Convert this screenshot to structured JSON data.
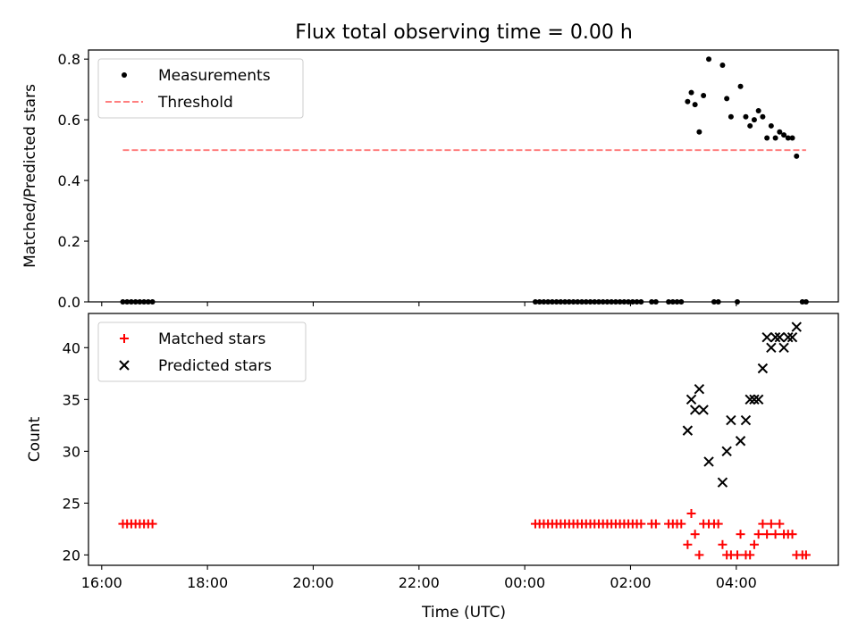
{
  "title": "Flux total observing time = 0.00 h",
  "x_axis": {
    "label": "Time (UTC)",
    "ticks": [
      "16:00",
      "18:00",
      "20:00",
      "22:00",
      "00:00",
      "02:00",
      "04:00"
    ],
    "tick_hours": [
      16,
      18,
      20,
      22,
      24,
      26,
      28
    ],
    "range_hours": [
      15.75,
      29.93
    ]
  },
  "chart_data": [
    {
      "type": "scatter",
      "name": "ratio",
      "ylabel": "Matched/Predicted stars",
      "ylim": [
        0.0,
        0.83
      ],
      "yticks": [
        "0.0",
        "0.2",
        "0.4",
        "0.6",
        "0.8"
      ],
      "ytick_values": [
        0.0,
        0.2,
        0.4,
        0.6,
        0.8
      ],
      "legend_position": "upper-left",
      "series": [
        {
          "name": "Measurements",
          "kind": "dots",
          "color": "#000000",
          "x": [
            16.4,
            16.48,
            16.56,
            16.64,
            16.72,
            16.8,
            16.88,
            16.96,
            24.2,
            24.28,
            24.36,
            24.44,
            24.52,
            24.6,
            24.68,
            24.76,
            24.84,
            24.92,
            25.0,
            25.08,
            25.16,
            25.24,
            25.32,
            25.4,
            25.48,
            25.56,
            25.64,
            25.72,
            25.8,
            25.88,
            25.96,
            26.04,
            26.12,
            26.2,
            26.4,
            26.48,
            26.72,
            26.8,
            26.88,
            26.96,
            27.08,
            27.15,
            27.22,
            27.3,
            27.38,
            27.48,
            27.58,
            27.66,
            27.74,
            27.82,
            27.9,
            28.02,
            28.08,
            28.18,
            28.26,
            28.34,
            28.42,
            28.5,
            28.58,
            28.66,
            28.74,
            28.82,
            28.9,
            28.98,
            29.06,
            29.14,
            29.25,
            29.32
          ],
          "y": [
            0,
            0,
            0,
            0,
            0,
            0,
            0,
            0,
            0,
            0,
            0,
            0,
            0,
            0,
            0,
            0,
            0,
            0,
            0,
            0,
            0,
            0,
            0,
            0,
            0,
            0,
            0,
            0,
            0,
            0,
            0,
            0,
            0,
            0,
            0,
            0,
            0,
            0,
            0,
            0,
            0.66,
            0.69,
            0.65,
            0.56,
            0.68,
            0.8,
            0,
            0,
            0.78,
            0.67,
            0.61,
            0,
            0.71,
            0.61,
            0.58,
            0.6,
            0.63,
            0.61,
            0.54,
            0.58,
            0.54,
            0.56,
            0.55,
            0.54,
            0.54,
            0.48,
            0,
            0
          ]
        },
        {
          "name": "Threshold",
          "kind": "dashed-line",
          "color": "#ff7f7f",
          "x": [
            16.4,
            29.32
          ],
          "y": [
            0.5,
            0.5
          ]
        }
      ]
    },
    {
      "type": "scatter",
      "name": "counts",
      "ylabel": "Count",
      "ylim": [
        19.0,
        43.3
      ],
      "yticks": [
        "20",
        "25",
        "30",
        "35",
        "40"
      ],
      "ytick_values": [
        20,
        25,
        30,
        35,
        40
      ],
      "legend_position": "upper-left",
      "series": [
        {
          "name": "Matched stars",
          "kind": "plus",
          "color": "#ff0000",
          "x": [
            16.4,
            16.48,
            16.56,
            16.64,
            16.72,
            16.8,
            16.88,
            16.96,
            24.2,
            24.28,
            24.36,
            24.44,
            24.52,
            24.6,
            24.68,
            24.76,
            24.84,
            24.92,
            25.0,
            25.08,
            25.16,
            25.24,
            25.32,
            25.4,
            25.48,
            25.56,
            25.64,
            25.72,
            25.8,
            25.88,
            25.96,
            26.04,
            26.12,
            26.2,
            26.4,
            26.48,
            26.72,
            26.8,
            26.88,
            26.96,
            27.08,
            27.15,
            27.22,
            27.3,
            27.38,
            27.48,
            27.58,
            27.66,
            27.74,
            27.82,
            27.9,
            28.02,
            28.08,
            28.18,
            28.26,
            28.34,
            28.42,
            28.5,
            28.58,
            28.66,
            28.74,
            28.82,
            28.9,
            28.98,
            29.06,
            29.14,
            29.25,
            29.32
          ],
          "y": [
            23,
            23,
            23,
            23,
            23,
            23,
            23,
            23,
            23,
            23,
            23,
            23,
            23,
            23,
            23,
            23,
            23,
            23,
            23,
            23,
            23,
            23,
            23,
            23,
            23,
            23,
            23,
            23,
            23,
            23,
            23,
            23,
            23,
            23,
            23,
            23,
            23,
            23,
            23,
            23,
            21,
            24,
            22,
            20,
            23,
            23,
            23,
            23,
            21,
            20,
            20,
            20,
            22,
            20,
            20,
            21,
            22,
            23,
            22,
            23,
            22,
            23,
            22,
            22,
            22,
            20,
            20,
            20
          ]
        },
        {
          "name": "Predicted stars",
          "kind": "x",
          "color": "#000000",
          "x": [
            27.08,
            27.15,
            27.22,
            27.3,
            27.38,
            27.48,
            27.74,
            27.82,
            27.9,
            28.08,
            28.18,
            28.26,
            28.34,
            28.42,
            28.5,
            28.58,
            28.66,
            28.74,
            28.82,
            28.9,
            28.98,
            29.06,
            29.14
          ],
          "y": [
            32,
            35,
            34,
            36,
            34,
            29,
            27,
            30,
            33,
            31,
            33,
            35,
            35,
            35,
            38,
            41,
            40,
            41,
            41,
            40,
            41,
            41,
            42
          ]
        }
      ]
    }
  ]
}
